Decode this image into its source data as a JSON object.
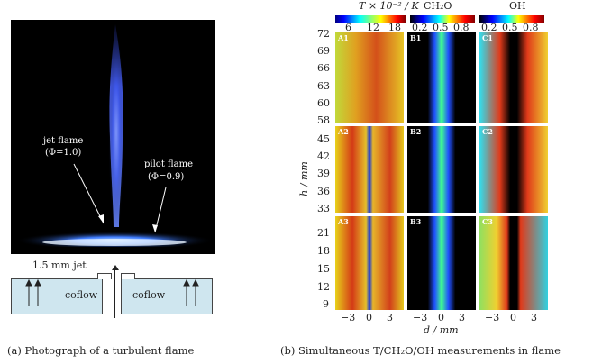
{
  "left_panel": {
    "annotations": {
      "jet_flame": "jet flame",
      "jet_phi": "(Φ=1.0)",
      "pilot_flame": "pilot flame",
      "pilot_phi": "(Φ=0.9)"
    },
    "schematic": {
      "jet_label": "1.5 mm jet",
      "coflow_left": "coflow",
      "coflow_right": "coflow"
    },
    "caption": "(a)  Photograph of a turbulent flame"
  },
  "right_panel": {
    "colorbars": [
      {
        "title": "T × 10⁻² / K",
        "ticks": [
          "6",
          "12",
          "18"
        ],
        "colormap": "jet"
      },
      {
        "title": "CH₂O",
        "ticks": [
          "0.2",
          "0.5",
          "0.8"
        ],
        "colormap": "jet"
      },
      {
        "title": "OH",
        "ticks": [
          "0.2",
          "0.5",
          "0.8"
        ],
        "colormap": "jet"
      }
    ],
    "y_axis_label": "h / mm",
    "x_axis_label": "d / mm",
    "row_ticks": [
      [
        "72",
        "69",
        "66",
        "63",
        "60",
        "58"
      ],
      [
        "45",
        "42",
        "39",
        "36",
        "33"
      ],
      [
        "21",
        "18",
        "15",
        "12",
        "9"
      ]
    ],
    "x_ticks": [
      "−3",
      "0",
      "3"
    ],
    "panel_labels": [
      [
        "A1",
        "B1",
        "C1"
      ],
      [
        "A2",
        "B2",
        "C2"
      ],
      [
        "A3",
        "B3",
        "C3"
      ]
    ],
    "caption": "(b)  Simultaneous T/CH₂O/OH measurements in flame"
  },
  "colors": {
    "background": "#ffffff",
    "photo_background": "#000000",
    "coflow_fill": "#cfe6ef",
    "flame_blue": "#3a6bff"
  }
}
